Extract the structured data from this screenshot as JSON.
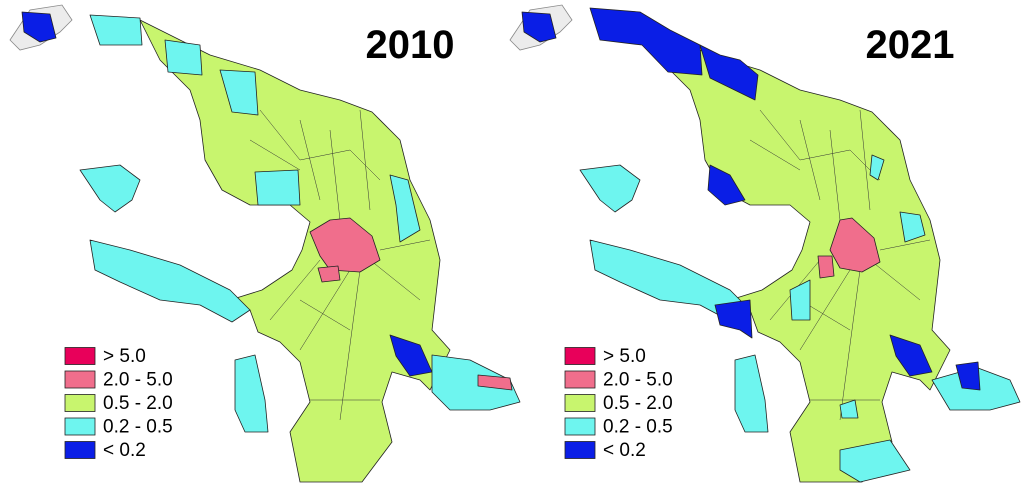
{
  "maps": [
    {
      "title": "2010"
    },
    {
      "title": "2021"
    }
  ],
  "legend": [
    {
      "label": "> 5.0",
      "color": "#e8005a"
    },
    {
      "label": "2.0 - 5.0",
      "color": "#f06e8c"
    },
    {
      "label": "0.5 - 2.0",
      "color": "#c8f56e"
    },
    {
      "label": "0.2 - 0.5",
      "color": "#6ef5ef"
    },
    {
      "label": "< 0.2",
      "color": "#0a1ee6"
    }
  ]
}
